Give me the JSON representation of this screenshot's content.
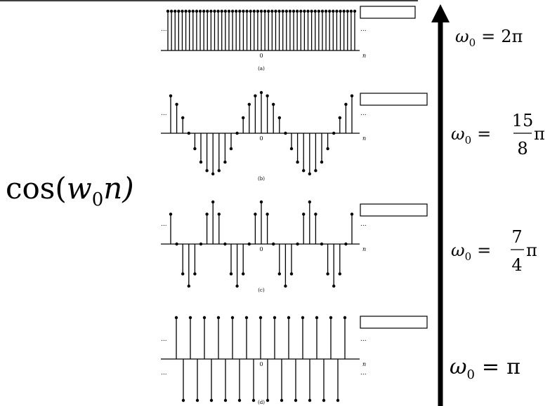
{
  "main_label": {
    "prefix": "cos(",
    "var": "w",
    "sub": "0",
    "tail": "n)"
  },
  "panels": [
    {
      "caption": "(a)",
      "origin_label": "0",
      "axis_label": "n",
      "ellipsis": "...",
      "values": [
        1,
        1,
        1,
        1,
        1,
        1,
        1,
        1,
        1,
        1,
        1,
        1,
        1,
        1,
        1,
        1,
        1,
        1,
        1,
        1,
        1,
        1,
        1,
        1,
        1,
        1,
        1,
        1,
        1,
        1,
        1,
        1,
        1,
        1,
        1,
        1,
        1,
        1,
        1,
        1,
        1,
        1,
        1,
        1,
        1,
        1,
        1,
        1,
        1,
        1,
        1,
        1,
        1
      ]
    },
    {
      "caption": "(b)",
      "origin_label": "0",
      "axis_label": "n",
      "ellipsis": "...",
      "values": [
        0.92,
        0.71,
        0.38,
        0.0,
        -0.38,
        -0.71,
        -0.92,
        -1.0,
        -0.92,
        -0.71,
        -0.38,
        0.0,
        0.38,
        0.71,
        0.92,
        1.0,
        0.92,
        0.71,
        0.38,
        0.0,
        -0.38,
        -0.71,
        -0.92,
        -1.0,
        -0.92,
        -0.71,
        -0.38,
        0.0,
        0.38,
        0.71,
        0.92
      ]
    },
    {
      "caption": "(c)",
      "origin_label": "0",
      "axis_label": "n",
      "ellipsis": "...",
      "values": [
        0.71,
        0.0,
        -0.71,
        -1.0,
        -0.71,
        0.0,
        0.71,
        1.0,
        0.71,
        0.0,
        -0.71,
        -1.0,
        -0.71,
        0.0,
        0.71,
        1.0,
        0.71,
        0.0,
        -0.71,
        -1.0,
        -0.71,
        0.0,
        0.71,
        1.0,
        0.71,
        0.0,
        -0.71,
        -1.0,
        -0.71,
        0.0,
        0.71
      ]
    },
    {
      "caption": "(d)",
      "origin_label": "0",
      "axis_label": "n",
      "ellipsis": "...",
      "values": [
        1,
        -1,
        1,
        -1,
        1,
        -1,
        1,
        -1,
        1,
        -1,
        1,
        -1,
        1,
        -1,
        1,
        -1,
        1,
        -1,
        1,
        -1,
        1,
        -1,
        1,
        -1,
        1
      ]
    }
  ],
  "frequency_labels": [
    {
      "lhs": "ω",
      "sub": "0",
      "eq": "=",
      "kind": "plain",
      "value": "2π"
    },
    {
      "lhs": "ω",
      "sub": "0",
      "eq": "=",
      "kind": "frac",
      "num": "15",
      "den": "8",
      "suffix": "π"
    },
    {
      "lhs": "ω",
      "sub": "0",
      "eq": "=",
      "kind": "frac",
      "num": "7",
      "den": "4",
      "suffix": "π"
    },
    {
      "lhs": "ω",
      "sub": "0",
      "eq": "=",
      "kind": "plain",
      "value": "π"
    }
  ],
  "colors": {
    "ink": "#000000",
    "stem": "#222222",
    "background": "#ffffff"
  }
}
